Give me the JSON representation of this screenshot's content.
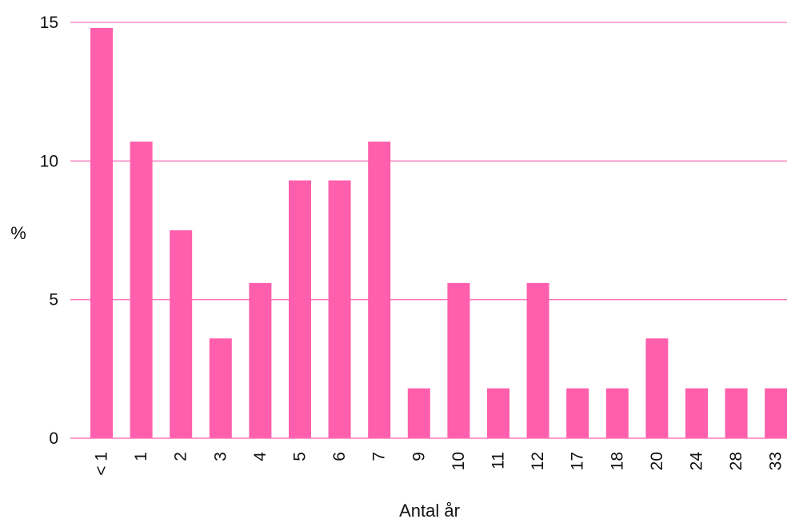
{
  "chart_data": {
    "type": "bar",
    "title": "",
    "xlabel": "Antal år",
    "ylabel": "%",
    "categories": [
      "< 1",
      "1",
      "2",
      "3",
      "4",
      "5",
      "6",
      "7",
      "9",
      "10",
      "11",
      "12",
      "17",
      "18",
      "20",
      "24",
      "28",
      "33"
    ],
    "values": [
      14.8,
      10.7,
      7.5,
      3.6,
      5.6,
      9.3,
      9.3,
      10.7,
      1.8,
      5.6,
      1.8,
      5.6,
      1.8,
      1.8,
      3.6,
      1.8,
      1.8,
      1.8
    ],
    "ylim": [
      0,
      15
    ],
    "yticks": [
      0,
      5,
      10,
      15
    ],
    "grid": true,
    "legend": "none",
    "bar_color": "#ff5fac",
    "grid_color": "#ff77bb"
  }
}
